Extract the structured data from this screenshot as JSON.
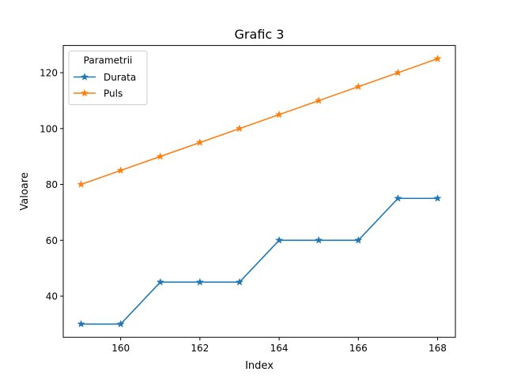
{
  "chart_data": {
    "type": "line",
    "title": "Grafic 3",
    "xlabel": "Index",
    "ylabel": "Valoare",
    "xlim": [
      158.55,
      168.45
    ],
    "ylim": [
      25.25,
      129.75
    ],
    "x": [
      159,
      160,
      161,
      162,
      163,
      164,
      165,
      166,
      167,
      168
    ],
    "x_ticks": [
      160,
      162,
      164,
      166,
      168
    ],
    "y_ticks": [
      40,
      60,
      80,
      100,
      120
    ],
    "grid": false,
    "legend": {
      "title": "Parametrii",
      "placement": "top-left"
    },
    "series": [
      {
        "name": "Durata",
        "color": "#1f77b4",
        "marker": "star",
        "values": [
          30,
          30,
          45,
          45,
          45,
          60,
          60,
          60,
          75,
          75
        ]
      },
      {
        "name": "Puls",
        "color": "#ff7f0e",
        "marker": "star",
        "values": [
          80,
          85,
          90,
          95,
          100,
          105,
          110,
          115,
          120,
          125
        ]
      }
    ]
  }
}
